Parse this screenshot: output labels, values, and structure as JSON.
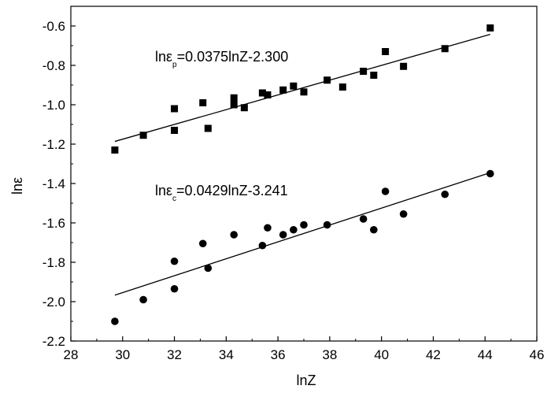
{
  "chart_data": {
    "type": "scatter",
    "title": "",
    "xlabel": "lnZ",
    "ylabel": "lnε",
    "xlim": [
      28,
      46
    ],
    "ylim": [
      -2.2,
      -0.5
    ],
    "xticks": [
      28,
      30,
      32,
      34,
      36,
      38,
      40,
      42,
      44,
      46
    ],
    "yticks": [
      -2.2,
      -2.0,
      -1.8,
      -1.6,
      -1.4,
      -1.2,
      -1.0,
      -0.8,
      -0.6
    ],
    "grid": false,
    "series": [
      {
        "marker": "square",
        "color": "#000000",
        "x": [
          29.7,
          30.8,
          32.0,
          32.0,
          33.1,
          33.3,
          34.3,
          34.3,
          34.7,
          35.4,
          35.6,
          36.2,
          36.6,
          37.0,
          37.9,
          38.5,
          39.3,
          39.7,
          40.15,
          40.85,
          42.45,
          44.2
        ],
        "y": [
          -1.23,
          -1.155,
          -1.02,
          -1.13,
          -0.99,
          -1.12,
          -1.0,
          -0.965,
          -1.015,
          -0.94,
          -0.95,
          -0.925,
          -0.905,
          -0.935,
          -0.875,
          -0.91,
          -0.83,
          -0.85,
          -0.73,
          -0.805,
          -0.715,
          -0.61
        ]
      },
      {
        "marker": "circle",
        "color": "#000000",
        "x": [
          29.7,
          30.8,
          32.0,
          32.0,
          33.1,
          33.3,
          34.3,
          35.4,
          35.6,
          36.2,
          36.6,
          37.0,
          37.9,
          39.3,
          39.7,
          40.15,
          40.85,
          42.45,
          44.2
        ],
        "y": [
          -2.1,
          -1.99,
          -1.935,
          -1.795,
          -1.705,
          -1.83,
          -1.66,
          -1.715,
          -1.625,
          -1.66,
          -1.635,
          -1.61,
          -1.61,
          -1.58,
          -1.635,
          -1.44,
          -1.555,
          -1.455,
          -1.35
        ]
      }
    ],
    "fit_lines": [
      {
        "slope": 0.0375,
        "intercept": -2.3,
        "x_range": [
          29.7,
          44.2
        ],
        "label_main": "lnε",
        "label_sub": "p",
        "label_rest": "=0.0375lnZ-2.300"
      },
      {
        "slope": 0.0429,
        "intercept": -3.241,
        "x_range": [
          29.7,
          44.2
        ],
        "label_main": "lnε",
        "label_sub": "c",
        "label_rest": "=0.0429lnZ-3.241"
      }
    ]
  }
}
